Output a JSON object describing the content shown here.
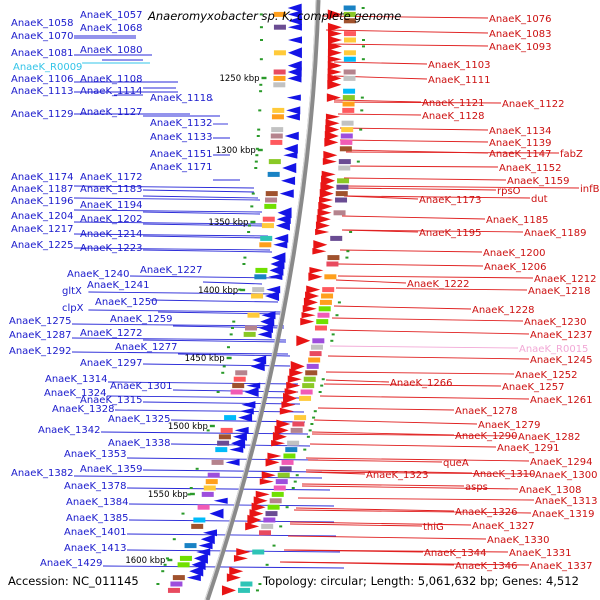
{
  "title": "Anaeromyxobacter sp. K, complete genome",
  "accession": "Accession: NC_011145",
  "topology": "Topology: circular; Length: 5,061,632 bp; Genes: 4,512",
  "colors": {
    "minus_label": "#1a1acc",
    "plus_label": "#cc1010",
    "minus_line": "#2a2ad8",
    "plus_line": "#e02020",
    "rna_minus": "#33c4e8",
    "rna_plus": "#f2a8d6",
    "backbone": "#8a8a8a",
    "tick": "#2a9a2a"
  },
  "icons": {
    "minus_strand_feature": "left-pointing-arrow",
    "plus_strand_feature": "right-pointing-arrow"
  },
  "scale_ticks": [
    {
      "label": "1250 kbp"
    },
    {
      "label": "1300 kbp"
    },
    {
      "label": "1350 kbp"
    },
    {
      "label": "1400 kbp"
    },
    {
      "label": "1450 kbp"
    },
    {
      "label": "1500 kbp"
    },
    {
      "label": "1550 kbp"
    },
    {
      "label": "1600 kbp"
    }
  ],
  "minus_strand_labels": [
    {
      "text": "AnaeK_1058"
    },
    {
      "text": "AnaeK_1057"
    },
    {
      "text": "AnaeK_1070"
    },
    {
      "text": "AnaeK_1068"
    },
    {
      "text": "AnaeK_1081"
    },
    {
      "text": "AnaeK_1080"
    },
    {
      "text": "AnaeK_R0009",
      "rna": true
    },
    {
      "text": "AnaeK_1106"
    },
    {
      "text": "AnaeK_1108"
    },
    {
      "text": "AnaeK_1113"
    },
    {
      "text": "AnaeK_1114"
    },
    {
      "text": "AnaeK_1118"
    },
    {
      "text": "AnaeK_1129"
    },
    {
      "text": "AnaeK_1127"
    },
    {
      "text": "AnaeK_1132"
    },
    {
      "text": "AnaeK_1133"
    },
    {
      "text": "AnaeK_1151"
    },
    {
      "text": "AnaeK_1171"
    },
    {
      "text": "AnaeK_1174"
    },
    {
      "text": "AnaeK_1172"
    },
    {
      "text": "AnaeK_1187"
    },
    {
      "text": "AnaeK_1183"
    },
    {
      "text": "AnaeK_1196"
    },
    {
      "text": "AnaeK_1194"
    },
    {
      "text": "AnaeK_1204"
    },
    {
      "text": "AnaeK_1202"
    },
    {
      "text": "AnaeK_1217"
    },
    {
      "text": "AnaeK_1214"
    },
    {
      "text": "AnaeK_1225"
    },
    {
      "text": "AnaeK_1223"
    },
    {
      "text": "AnaeK_1240"
    },
    {
      "text": "AnaeK_1227"
    },
    {
      "text": "gltX"
    },
    {
      "text": "AnaeK_1241"
    },
    {
      "text": "clpX"
    },
    {
      "text": "AnaeK_1250"
    },
    {
      "text": "AnaeK_1275"
    },
    {
      "text": "AnaeK_1259"
    },
    {
      "text": "AnaeK_1287"
    },
    {
      "text": "AnaeK_1272"
    },
    {
      "text": "AnaeK_1292"
    },
    {
      "text": "AnaeK_1277"
    },
    {
      "text": "AnaeK_1297"
    },
    {
      "text": "AnaeK_1314"
    },
    {
      "text": "AnaeK_1301"
    },
    {
      "text": "AnaeK_1324"
    },
    {
      "text": "AnaeK_1315"
    },
    {
      "text": "AnaeK_1328"
    },
    {
      "text": "AnaeK_1325"
    },
    {
      "text": "AnaeK_1342"
    },
    {
      "text": "AnaeK_1338"
    },
    {
      "text": "AnaeK_1353"
    },
    {
      "text": "AnaeK_1382"
    },
    {
      "text": "AnaeK_1359"
    },
    {
      "text": "AnaeK_1378"
    },
    {
      "text": "AnaeK_1384"
    },
    {
      "text": "AnaeK_1385"
    },
    {
      "text": "AnaeK_1401"
    },
    {
      "text": "AnaeK_1413"
    },
    {
      "text": "AnaeK_1429"
    }
  ],
  "plus_strand_labels": [
    {
      "text": "AnaeK_1076"
    },
    {
      "text": "AnaeK_1083"
    },
    {
      "text": "AnaeK_1093"
    },
    {
      "text": "AnaeK_1103"
    },
    {
      "text": "AnaeK_1111"
    },
    {
      "text": "AnaeK_1121"
    },
    {
      "text": "AnaeK_1122"
    },
    {
      "text": "AnaeK_1128"
    },
    {
      "text": "AnaeK_1134"
    },
    {
      "text": "AnaeK_1139"
    },
    {
      "text": "AnaeK_1147"
    },
    {
      "text": "fabZ"
    },
    {
      "text": "AnaeK_1152"
    },
    {
      "text": "AnaeK_1159"
    },
    {
      "text": "infB"
    },
    {
      "text": "rpsO"
    },
    {
      "text": "dut"
    },
    {
      "text": "AnaeK_1173"
    },
    {
      "text": "AnaeK_1185"
    },
    {
      "text": "AnaeK_1195"
    },
    {
      "text": "AnaeK_1189"
    },
    {
      "text": "AnaeK_1200"
    },
    {
      "text": "AnaeK_1206"
    },
    {
      "text": "AnaeK_1212"
    },
    {
      "text": "AnaeK_1222"
    },
    {
      "text": "AnaeK_1218"
    },
    {
      "text": "AnaeK_1228"
    },
    {
      "text": "AnaeK_1230"
    },
    {
      "text": "AnaeK_1237"
    },
    {
      "text": "AnaeK_R0015",
      "rna": true
    },
    {
      "text": "AnaeK_1245"
    },
    {
      "text": "AnaeK_1252"
    },
    {
      "text": "AnaeK_1266"
    },
    {
      "text": "AnaeK_1257"
    },
    {
      "text": "AnaeK_1261"
    },
    {
      "text": "AnaeK_1278"
    },
    {
      "text": "AnaeK_1279"
    },
    {
      "text": "AnaeK_1290"
    },
    {
      "text": "AnaeK_1282"
    },
    {
      "text": "AnaeK_1291"
    },
    {
      "text": "queA"
    },
    {
      "text": "AnaeK_1294"
    },
    {
      "text": "AnaeK_1310"
    },
    {
      "text": "AnaeK_1300"
    },
    {
      "text": "AnaeK_1323"
    },
    {
      "text": "asps"
    },
    {
      "text": "AnaeK_1308"
    },
    {
      "text": "AnaeK_1313"
    },
    {
      "text": "AnaeK_1326"
    },
    {
      "text": "AnaeK_1319"
    },
    {
      "text": "AnaeK_1327"
    },
    {
      "text": "thiG"
    },
    {
      "text": "AnaeK_1330"
    },
    {
      "text": "AnaeK_1331"
    },
    {
      "text": "AnaeK_1344"
    },
    {
      "text": "AnaeK_1346"
    },
    {
      "text": "AnaeK_1337"
    }
  ]
}
